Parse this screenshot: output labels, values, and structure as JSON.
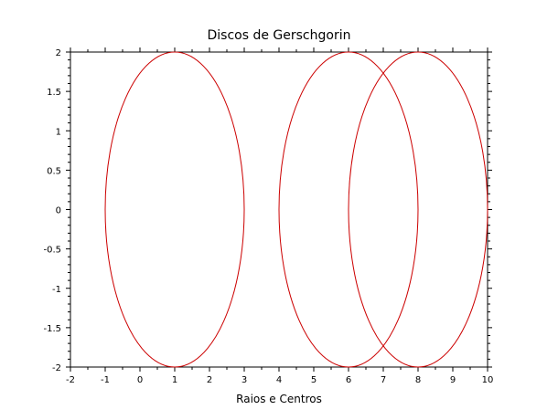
{
  "chart_data": {
    "type": "line",
    "title": "Discos de Gerschgorin",
    "xlabel": "Raios e Centros",
    "ylabel": "",
    "xlim": [
      -2,
      10
    ],
    "ylim": [
      -2,
      2
    ],
    "xticks": [
      -2,
      -1,
      0,
      1,
      2,
      3,
      4,
      5,
      6,
      7,
      8,
      9,
      10
    ],
    "yticks": [
      -2,
      -1.5,
      -1,
      -0.5,
      0,
      0.5,
      1,
      1.5,
      2
    ],
    "xtick_labels": [
      "-2",
      "-1",
      "0",
      "1",
      "2",
      "3",
      "4",
      "5",
      "6",
      "7",
      "8",
      "9",
      "10"
    ],
    "ytick_labels": [
      "-2",
      "-1.5",
      "-1",
      "-0.5",
      "0",
      "0.5",
      "1",
      "1.5",
      "2"
    ],
    "grid": false,
    "line_color": "#cc0000",
    "series": [
      {
        "center": [
          1,
          0
        ],
        "radius": 2
      },
      {
        "center": [
          6,
          0
        ],
        "radius": 2
      },
      {
        "center": [
          8,
          0
        ],
        "radius": 2
      }
    ]
  }
}
